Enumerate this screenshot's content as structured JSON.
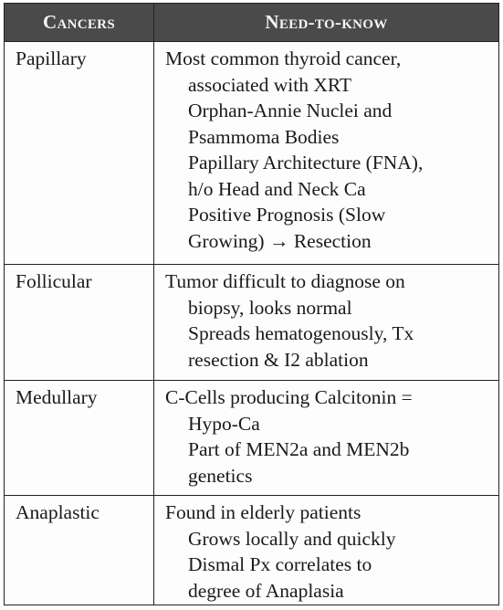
{
  "table": {
    "headers": [
      "Cancers",
      "Need-to-know"
    ],
    "rows": [
      {
        "name": "Papillary",
        "lines": [
          "Most common thyroid cancer,",
          "associated with XRT",
          "Orphan-Annie Nuclei and",
          "Psammoma Bodies",
          "Papillary Architecture (FNA),",
          "h/o Head and Neck Ca",
          "Positive Prognosis (Slow",
          "Growing) → Resection"
        ]
      },
      {
        "name": "Follicular",
        "lines": [
          "Tumor difficult to diagnose on",
          "biopsy, looks normal",
          "Spreads hematogenously, Tx",
          "resection & I2 ablation"
        ]
      },
      {
        "name": "Medullary",
        "lines": [
          "C-Cells producing Calcitonin =",
          "Hypo-Ca",
          "Part of MEN2a and MEN2b",
          "genetics"
        ]
      },
      {
        "name": "Anaplastic",
        "lines": [
          "Found in elderly patients",
          "Grows locally and quickly",
          "Dismal Px correlates to",
          "degree of Anaplasia"
        ]
      }
    ]
  }
}
